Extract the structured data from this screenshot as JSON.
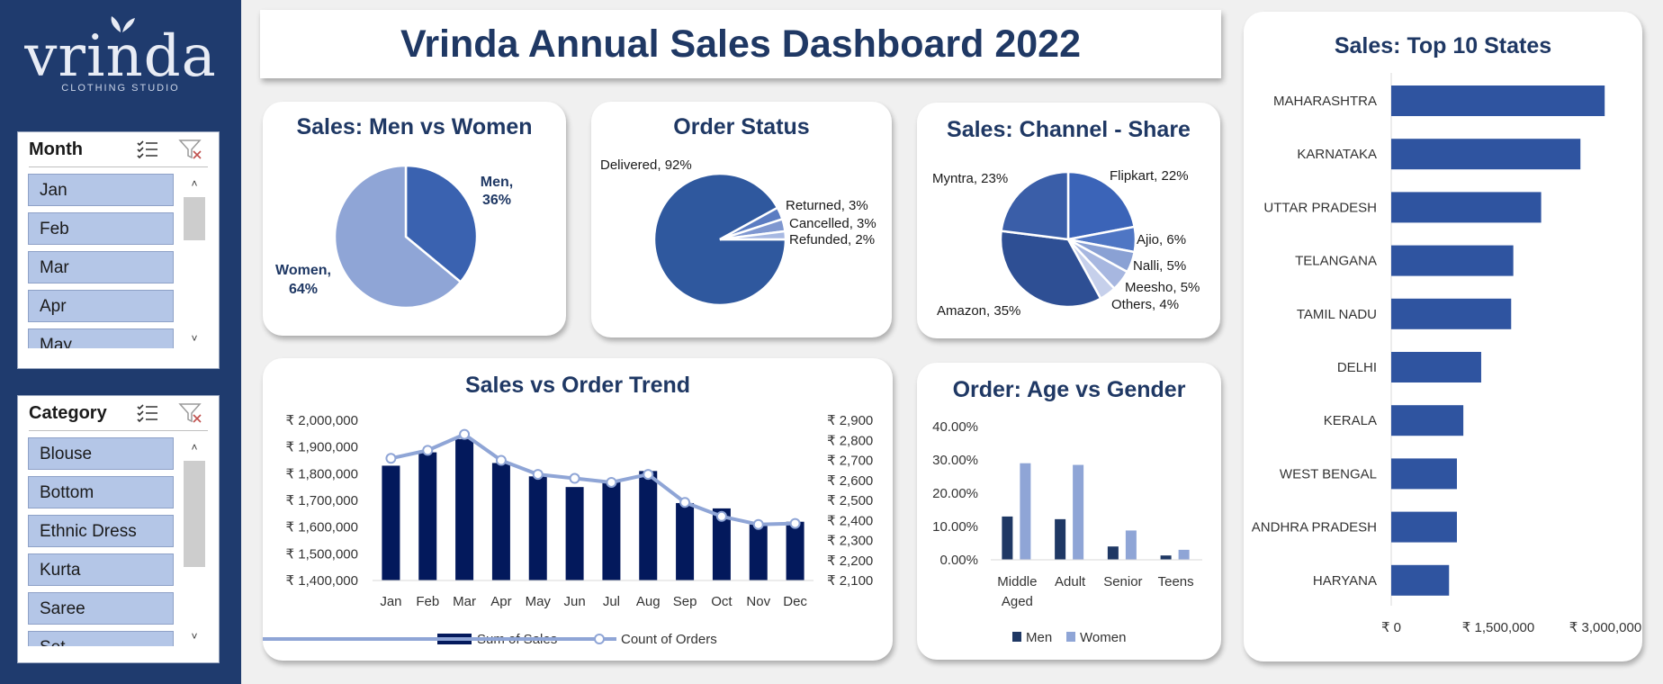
{
  "brand": {
    "name": "vrinda",
    "tagline": "CLOTHING STUDIO"
  },
  "title": "Vrinda Annual Sales Dashboard 2022",
  "slicers": {
    "month": {
      "title": "Month",
      "items": [
        "Jan",
        "Feb",
        "Mar",
        "Apr",
        "May"
      ]
    },
    "category": {
      "title": "Category",
      "items": [
        "Blouse",
        "Bottom",
        "Ethnic Dress",
        "Kurta",
        "Saree",
        "Set"
      ]
    }
  },
  "icons": {
    "multi_select": "multi-select-icon",
    "clear_filter": "clear-filter-icon",
    "scroll_up": "chevron-up-icon",
    "scroll_down": "chevron-down-icon"
  },
  "colors": {
    "navy": "#1f3864",
    "dark_bar": "#03195c",
    "blue": "#2f54a0",
    "light_blue": "#8fa5d6",
    "sidebar": "#1f3b6e"
  },
  "chart_data": [
    {
      "id": "men_women",
      "type": "pie",
      "title": "Sales: Men vs Women",
      "slices": [
        {
          "label": "Men,",
          "pct_text": "36%",
          "value": 36,
          "color": "#3a62b0"
        },
        {
          "label": "Women,",
          "pct_text": "64%",
          "value": 64,
          "color": "#8fa5d6"
        }
      ]
    },
    {
      "id": "order_status",
      "type": "pie",
      "title": "Order Status",
      "slices": [
        {
          "label": "Delivered, 92%",
          "value": 92,
          "color": "#2f589e"
        },
        {
          "label": "Returned, 3%",
          "value": 3,
          "color": "#5b7cc2"
        },
        {
          "label": "Cancelled, 3%",
          "value": 3,
          "color": "#7f97d0"
        },
        {
          "label": "Refunded, 2%",
          "value": 2,
          "color": "#a8b9e2"
        }
      ]
    },
    {
      "id": "channel",
      "type": "pie",
      "title": "Sales: Channel - Share",
      "slices": [
        {
          "label": "Flipkart, 22%",
          "value": 22,
          "color": "#3b64b8"
        },
        {
          "label": "Ajio, 6%",
          "value": 6,
          "color": "#4f76c4"
        },
        {
          "label": "Nalli, 5%",
          "value": 5,
          "color": "#8aa1d4"
        },
        {
          "label": "Meesho, 5%",
          "value": 5,
          "color": "#a7b7e0"
        },
        {
          "label": "Others, 4%",
          "value": 4,
          "color": "#c6d0eb"
        },
        {
          "label": "Amazon, 35%",
          "value": 35,
          "color": "#2e4f94"
        },
        {
          "label": "Myntra, 23%",
          "value": 23,
          "color": "#3a5ea8"
        }
      ]
    },
    {
      "id": "trend",
      "type": "bar",
      "title": "Sales vs Order Trend",
      "categories": [
        "Jan",
        "Feb",
        "Mar",
        "Apr",
        "May",
        "Jun",
        "Jul",
        "Aug",
        "Sep",
        "Oct",
        "Nov",
        "Dec"
      ],
      "series": [
        {
          "name": "Sum of Sales",
          "type": "bar",
          "axis": "left",
          "values": [
            1830000,
            1880000,
            1930000,
            1840000,
            1790000,
            1750000,
            1770000,
            1810000,
            1690000,
            1670000,
            1610000,
            1620000
          ]
        },
        {
          "name": "Count of Orders",
          "type": "line",
          "axis": "right",
          "values": [
            2710,
            2750,
            2830,
            2700,
            2630,
            2610,
            2590,
            2630,
            2490,
            2420,
            2380,
            2385
          ]
        }
      ],
      "ylim_left": [
        1400000,
        2000000
      ],
      "yticks_left": [
        "₹ 2,000,000",
        "₹ 1,900,000",
        "₹ 1,800,000",
        "₹ 1,700,000",
        "₹ 1,600,000",
        "₹ 1,500,000",
        "₹ 1,400,000"
      ],
      "ylim_right": [
        2100,
        2900
      ],
      "yticks_right": [
        "₹ 2,900",
        "₹ 2,800",
        "₹ 2,700",
        "₹ 2,600",
        "₹ 2,500",
        "₹ 2,400",
        "₹ 2,300",
        "₹ 2,200",
        "₹ 2,100"
      ],
      "legend": "bottom"
    },
    {
      "id": "age_gender",
      "type": "bar",
      "title": "Order: Age vs Gender",
      "categories": [
        [
          "Middle",
          "Aged"
        ],
        [
          "Adult"
        ],
        [
          "Senior"
        ],
        [
          "Teens"
        ]
      ],
      "series": [
        {
          "name": "Men",
          "values": [
            13,
            12.2,
            4,
            1.3
          ],
          "color": "#1f3864"
        },
        {
          "name": "Women",
          "values": [
            29,
            28.5,
            8.8,
            3
          ],
          "color": "#8fa5d6"
        }
      ],
      "ylim": [
        0,
        40
      ],
      "yticks": [
        "40.00%",
        "30.00%",
        "20.00%",
        "10.00%",
        "0.00%"
      ],
      "legend": "bottom"
    },
    {
      "id": "states",
      "type": "bar",
      "orientation": "horizontal",
      "title": "Sales: Top 10 States",
      "categories": [
        "MAHARASHTRA",
        "KARNATAKA",
        "UTTAR PRADESH",
        "TELANGANA",
        "TAMIL NADU",
        "DELHI",
        "KERALA",
        "WEST BENGAL",
        "ANDHRA PRADESH",
        "HARYANA"
      ],
      "values": [
        2990000,
        2650000,
        2100000,
        1710000,
        1680000,
        1260000,
        1010000,
        920000,
        920000,
        810000
      ],
      "xlim": [
        0,
        3000000
      ],
      "xticks": [
        "₹ 0",
        "₹ 1,500,000",
        "₹ 3,000,000"
      ]
    }
  ]
}
